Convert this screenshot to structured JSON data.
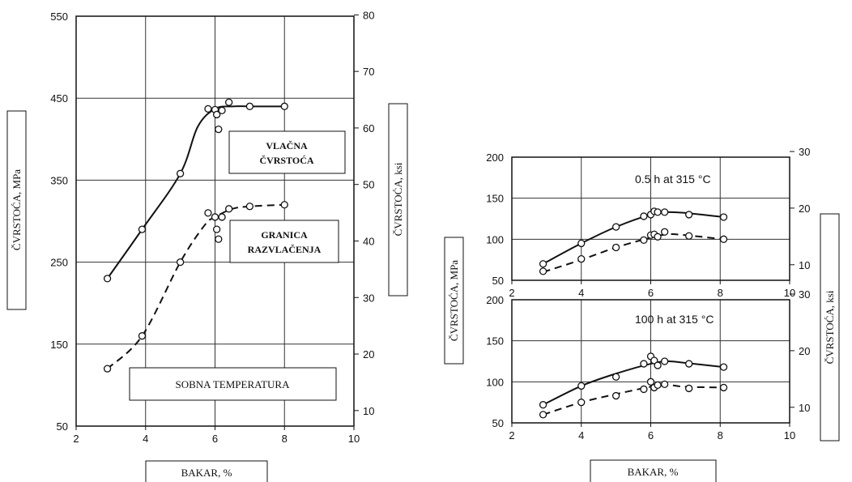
{
  "labels": {
    "left_ylabel": "ČVRSTOĆA, MPa",
    "left_y2label": "ČVRSTOĆA, ksi",
    "left_xlabel": "BAKAR, %",
    "right_ylabel": "ČVRSTOĆA, MPa",
    "right_y2label": "ČVRSTOĆA, ksi",
    "right_xlabel": "BAKAR, %",
    "vlacna_line1": "VLAČNA",
    "vlacna_line2": "ČVRSTOĆA",
    "granica_line1": "GRANICA",
    "granica_line2": "RAZVLAČENJA",
    "sobna": "SOBNA TEMPERATURA"
  },
  "chart_data": [
    {
      "type": "line",
      "annotation": "",
      "xlim": [
        2,
        10
      ],
      "xticks": [
        2,
        4,
        6,
        8,
        10
      ],
      "ylim": [
        50,
        550
      ],
      "yticks": [
        50,
        150,
        250,
        350,
        450,
        550
      ],
      "y2lim": [
        7.25,
        79.77
      ],
      "y2ticks": [
        10,
        20,
        30,
        40,
        50,
        60,
        70,
        80
      ],
      "grid": true,
      "series": [
        {
          "style": "solid",
          "curve_x": [
            2.9,
            3.9,
            5.0,
            5.5,
            6.0,
            6.5,
            7.0,
            8.0
          ],
          "curve_y": [
            230,
            290,
            358,
            415,
            437,
            440,
            440,
            440
          ],
          "points_x": [
            2.9,
            3.9,
            5.0,
            5.8,
            6.0,
            6.05,
            6.1,
            6.2,
            6.4,
            7.0,
            8.0
          ],
          "points_y": [
            230,
            290,
            358,
            437,
            436,
            430,
            412,
            435,
            445,
            440,
            440
          ]
        },
        {
          "style": "dashed",
          "curve_x": [
            2.9,
            3.9,
            5.0,
            5.7,
            6.0,
            6.5,
            7.0,
            8.0
          ],
          "curve_y": [
            120,
            160,
            250,
            295,
            305,
            315,
            318,
            320
          ],
          "points_x": [
            2.9,
            3.9,
            5.0,
            5.8,
            6.0,
            6.05,
            6.1,
            6.2,
            6.4,
            7.0,
            8.0
          ],
          "points_y": [
            120,
            160,
            250,
            310,
            305,
            290,
            278,
            305,
            315,
            318,
            320
          ]
        }
      ]
    },
    {
      "type": "line",
      "annotation": "0.5 h at 315 °C",
      "xlim": [
        2,
        10
      ],
      "xticks": [
        2,
        4,
        6,
        8,
        10
      ],
      "ylim": [
        50,
        200
      ],
      "yticks": [
        50,
        100,
        150,
        200
      ],
      "y2lim": [
        7.25,
        29.0
      ],
      "y2ticks": [
        10,
        20,
        30
      ],
      "grid": true,
      "series": [
        {
          "style": "solid",
          "curve_x": [
            2.9,
            4.0,
            5.0,
            6.0,
            6.5,
            7.0,
            8.1
          ],
          "curve_y": [
            70,
            95,
            115,
            130,
            133,
            132,
            127
          ],
          "points_x": [
            2.9,
            4.0,
            5.0,
            5.8,
            6.0,
            6.1,
            6.2,
            6.4,
            7.1,
            8.1
          ],
          "points_y": [
            70,
            95,
            115,
            128,
            130,
            134,
            133,
            133,
            130,
            127
          ]
        },
        {
          "style": "dashed",
          "curve_x": [
            2.9,
            4.0,
            5.0,
            6.0,
            6.5,
            7.0,
            8.1
          ],
          "curve_y": [
            60,
            75,
            90,
            102,
            106,
            105,
            100
          ],
          "points_x": [
            2.9,
            4.0,
            5.0,
            5.8,
            6.0,
            6.1,
            6.2,
            6.4,
            7.1,
            8.1
          ],
          "points_y": [
            61,
            76,
            90,
            99,
            105,
            106,
            103,
            109,
            104,
            100
          ]
        }
      ]
    },
    {
      "type": "line",
      "annotation": "100 h at 315 °C",
      "xlim": [
        2,
        10
      ],
      "xticks": [
        2,
        4,
        6,
        8,
        10
      ],
      "ylim": [
        50,
        200
      ],
      "yticks": [
        50,
        100,
        150,
        200
      ],
      "y2lim": [
        7.25,
        29.0
      ],
      "y2ticks": [
        10,
        20,
        30
      ],
      "grid": true,
      "series": [
        {
          "style": "solid",
          "curve_x": [
            2.9,
            4.0,
            5.0,
            6.0,
            6.5,
            7.0,
            8.1
          ],
          "curve_y": [
            72,
            95,
            110,
            122,
            125,
            123,
            118
          ],
          "points_x": [
            2.9,
            4.0,
            5.0,
            5.8,
            6.0,
            6.1,
            6.2,
            6.4,
            7.1,
            8.1
          ],
          "points_y": [
            72,
            95,
            106,
            122,
            131,
            126,
            120,
            125,
            122,
            118
          ]
        },
        {
          "style": "dashed",
          "curve_x": [
            2.9,
            4.0,
            5.0,
            6.0,
            6.5,
            7.0,
            8.1
          ],
          "curve_y": [
            60,
            75,
            85,
            94,
            96,
            94,
            93
          ],
          "points_x": [
            2.9,
            4.0,
            5.0,
            5.8,
            6.0,
            6.1,
            6.2,
            6.4,
            7.1,
            8.1
          ],
          "points_y": [
            60,
            75,
            83,
            91,
            100,
            93,
            96,
            97,
            92,
            93
          ]
        }
      ]
    }
  ]
}
